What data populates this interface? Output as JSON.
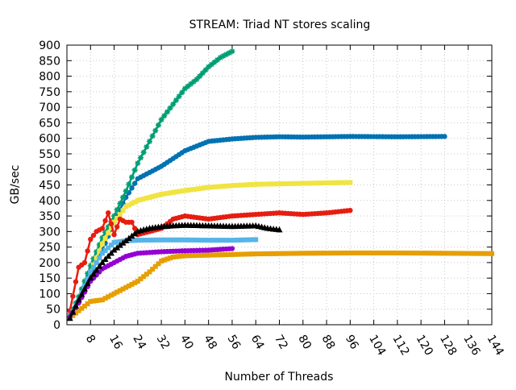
{
  "chart_data": {
    "type": "line",
    "title": "STREAM: Triad NT stores scaling",
    "xlabel": "Number of Threads",
    "ylabel": "GB/sec",
    "xlim": [
      0,
      144
    ],
    "ylim": [
      0,
      900
    ],
    "x_ticks": [
      "8",
      "16",
      "24",
      "32",
      "40",
      "48",
      "56",
      "64",
      "72",
      "80",
      "88",
      "96",
      "104",
      "112",
      "120",
      "128",
      "136",
      "144"
    ],
    "y_ticks": [
      "0",
      "50",
      "100",
      "150",
      "200",
      "250",
      "300",
      "350",
      "400",
      "450",
      "500",
      "550",
      "600",
      "650",
      "700",
      "750",
      "800",
      "850",
      "900"
    ],
    "grid": true,
    "legend": "none",
    "series": [
      {
        "color": "#e69f00",
        "marker": "square",
        "max_x": 144,
        "points": [
          [
            1,
            22
          ],
          [
            4,
            45
          ],
          [
            8,
            75
          ],
          [
            12,
            80
          ],
          [
            16,
            100
          ],
          [
            20,
            120
          ],
          [
            24,
            140
          ],
          [
            28,
            170
          ],
          [
            32,
            205
          ],
          [
            36,
            218
          ],
          [
            40,
            222
          ],
          [
            48,
            224
          ],
          [
            56,
            226
          ],
          [
            64,
            228
          ],
          [
            80,
            230
          ],
          [
            96,
            231
          ],
          [
            112,
            231
          ],
          [
            128,
            230
          ],
          [
            144,
            229
          ]
        ]
      },
      {
        "color": "#0072b2",
        "marker": "circle",
        "max_x": 128,
        "points": [
          [
            1,
            25
          ],
          [
            4,
            80
          ],
          [
            8,
            160
          ],
          [
            12,
            240
          ],
          [
            16,
            330
          ],
          [
            20,
            410
          ],
          [
            24,
            470
          ],
          [
            28,
            490
          ],
          [
            32,
            510
          ],
          [
            36,
            535
          ],
          [
            40,
            560
          ],
          [
            44,
            575
          ],
          [
            48,
            590
          ],
          [
            56,
            598
          ],
          [
            64,
            603
          ],
          [
            72,
            605
          ],
          [
            80,
            604
          ],
          [
            96,
            606
          ],
          [
            112,
            605
          ],
          [
            128,
            606
          ]
        ]
      },
      {
        "color": "#009e73",
        "marker": "star",
        "max_x": 56,
        "points": [
          [
            1,
            30
          ],
          [
            4,
            90
          ],
          [
            8,
            190
          ],
          [
            12,
            280
          ],
          [
            16,
            350
          ],
          [
            20,
            430
          ],
          [
            24,
            520
          ],
          [
            28,
            590
          ],
          [
            32,
            660
          ],
          [
            36,
            710
          ],
          [
            40,
            760
          ],
          [
            44,
            790
          ],
          [
            48,
            830
          ],
          [
            52,
            860
          ],
          [
            56,
            880
          ]
        ]
      },
      {
        "color": "#f0e442",
        "marker": "square",
        "max_x": 96,
        "points": [
          [
            1,
            25
          ],
          [
            4,
            75
          ],
          [
            8,
            170
          ],
          [
            12,
            260
          ],
          [
            16,
            330
          ],
          [
            20,
            380
          ],
          [
            24,
            400
          ],
          [
            28,
            410
          ],
          [
            32,
            420
          ],
          [
            40,
            432
          ],
          [
            48,
            442
          ],
          [
            56,
            448
          ],
          [
            64,
            452
          ],
          [
            80,
            455
          ],
          [
            96,
            458
          ]
        ]
      },
      {
        "color": "#e51e10",
        "marker": "circle",
        "max_x": 96,
        "points": [
          [
            1,
            45
          ],
          [
            4,
            185
          ],
          [
            6,
            200
          ],
          [
            8,
            275
          ],
          [
            10,
            300
          ],
          [
            12,
            310
          ],
          [
            14,
            360
          ],
          [
            16,
            290
          ],
          [
            18,
            340
          ],
          [
            20,
            330
          ],
          [
            22,
            330
          ],
          [
            24,
            290
          ],
          [
            28,
            300
          ],
          [
            32,
            310
          ],
          [
            36,
            340
          ],
          [
            40,
            350
          ],
          [
            48,
            340
          ],
          [
            56,
            350
          ],
          [
            64,
            355
          ],
          [
            72,
            360
          ],
          [
            80,
            355
          ],
          [
            88,
            360
          ],
          [
            96,
            368
          ]
        ]
      },
      {
        "color": "#56b4e9",
        "marker": "square",
        "max_x": 64,
        "points": [
          [
            1,
            25
          ],
          [
            4,
            80
          ],
          [
            8,
            170
          ],
          [
            12,
            230
          ],
          [
            16,
            265
          ],
          [
            20,
            270
          ],
          [
            24,
            272
          ],
          [
            32,
            273
          ],
          [
            40,
            273
          ],
          [
            48,
            272
          ],
          [
            56,
            272
          ],
          [
            64,
            274
          ]
        ]
      },
      {
        "color": "#9400d3",
        "marker": "circle",
        "max_x": 56,
        "points": [
          [
            1,
            25
          ],
          [
            4,
            70
          ],
          [
            8,
            140
          ],
          [
            12,
            180
          ],
          [
            16,
            200
          ],
          [
            20,
            220
          ],
          [
            24,
            230
          ],
          [
            32,
            235
          ],
          [
            40,
            238
          ],
          [
            48,
            240
          ],
          [
            56,
            245
          ]
        ]
      },
      {
        "color": "#000000",
        "marker": "triangle",
        "max_x": 72,
        "points": [
          [
            1,
            20
          ],
          [
            4,
            80
          ],
          [
            8,
            150
          ],
          [
            12,
            200
          ],
          [
            16,
            240
          ],
          [
            20,
            270
          ],
          [
            24,
            300
          ],
          [
            28,
            310
          ],
          [
            32,
            315
          ],
          [
            36,
            318
          ],
          [
            40,
            320
          ],
          [
            48,
            318
          ],
          [
            56,
            316
          ],
          [
            64,
            318
          ],
          [
            68,
            310
          ],
          [
            72,
            305
          ]
        ]
      }
    ]
  }
}
